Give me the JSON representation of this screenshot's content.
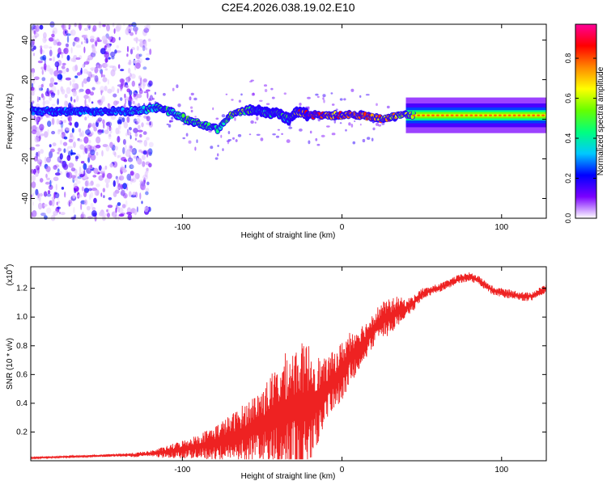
{
  "title": "C2E4.2026.038.19.02.E10",
  "chart_data": [
    {
      "type": "heatmap",
      "name": "spectrogram",
      "xlabel": "Height of straight line (km)",
      "ylabel": "Frequency (Hz)",
      "xlim": [
        -195,
        128
      ],
      "ylim": [
        -50,
        48
      ],
      "xticks": [
        -100,
        0,
        100
      ],
      "yticks": [
        -40,
        -20,
        0,
        20,
        40
      ],
      "xtick_labels": [
        "-100",
        "0",
        "100"
      ],
      "ytick_labels": [
        "-40",
        "-20",
        "0",
        "20",
        "40"
      ],
      "colorbar": {
        "label": "Normalized spectral amplitude",
        "range": [
          0,
          0.97
        ],
        "ticks": [
          0.0,
          0.2,
          0.4,
          0.6,
          0.8
        ],
        "tick_labels": [
          "0.0",
          "0.2",
          "0.4",
          "0.6",
          "0.8"
        ],
        "colormap": [
          "#ffffff",
          "#7a00ff",
          "#0000ff",
          "#00c8ff",
          "#00ff7f",
          "#66ff00",
          "#ffff00",
          "#ff8800",
          "#ff0000",
          "#ff0099"
        ]
      },
      "noise_region_x": [
        -195,
        -122
      ],
      "signal_track": {
        "x": [
          -190,
          -160,
          -130,
          -115,
          -105,
          -95,
          -85,
          -78,
          -70,
          -62,
          -55,
          -48,
          -40,
          -33,
          -28,
          -24,
          -20,
          -10,
          0,
          10,
          20,
          25,
          30,
          35,
          50,
          80,
          110,
          128
        ],
        "frequency": [
          4,
          4,
          4,
          6,
          3,
          -1,
          -3,
          -5,
          2,
          4,
          5,
          3,
          3,
          0,
          4,
          3,
          2,
          2,
          2,
          2,
          1,
          0,
          1,
          2,
          2,
          2,
          2,
          2
        ],
        "amplitude": [
          0.3,
          0.3,
          0.35,
          0.45,
          0.45,
          0.5,
          0.5,
          0.45,
          0.55,
          0.6,
          0.45,
          0.5,
          0.5,
          0.45,
          0.75,
          0.85,
          0.9,
          0.85,
          0.85,
          0.85,
          0.8,
          0.75,
          0.8,
          0.65,
          0.55,
          0.55,
          0.55,
          0.55
        ]
      }
    },
    {
      "type": "line",
      "name": "snr",
      "xlabel": "Height of straight line (km)",
      "ylabel": "SNR (10 * v/v)",
      "y_multiplier": "(x10",
      "y_multiplier_exp": "4",
      "y_multiplier_close": ")",
      "xlim": [
        -195,
        128
      ],
      "ylim": [
        0,
        1.35
      ],
      "xticks": [
        -100,
        0,
        100
      ],
      "yticks": [
        0.2,
        0.4,
        0.6,
        0.8,
        1.0,
        1.2
      ],
      "xtick_labels": [
        "-100",
        "0",
        "100"
      ],
      "ytick_labels": [
        "0.2",
        "0.4",
        "0.6",
        "0.8",
        "1.0",
        "1.2"
      ],
      "color": "#ee2222",
      "series": [
        {
          "name": "SNR",
          "x": [
            -195,
            -180,
            -165,
            -150,
            -140,
            -130,
            -120,
            -110,
            -100,
            -90,
            -80,
            -70,
            -60,
            -50,
            -45,
            -40,
            -35,
            -30,
            -25,
            -20,
            -15,
            -12,
            -10,
            -5,
            0,
            5,
            10,
            15,
            20,
            25,
            30,
            35,
            40,
            45,
            50,
            55,
            60,
            65,
            70,
            75,
            80,
            85,
            90,
            95,
            100,
            105,
            110,
            115,
            120,
            128
          ],
          "base": [
            0.02,
            0.025,
            0.03,
            0.035,
            0.04,
            0.04,
            0.05,
            0.06,
            0.08,
            0.1,
            0.12,
            0.16,
            0.2,
            0.25,
            0.28,
            0.3,
            0.34,
            0.36,
            0.38,
            0.4,
            0.42,
            0.45,
            0.5,
            0.56,
            0.62,
            0.72,
            0.78,
            0.84,
            0.92,
            0.98,
            1.0,
            1.04,
            1.06,
            1.1,
            1.16,
            1.18,
            1.2,
            1.22,
            1.25,
            1.27,
            1.28,
            1.26,
            1.22,
            1.18,
            1.17,
            1.16,
            1.15,
            1.14,
            1.15,
            1.2
          ],
          "amp": [
            0.005,
            0.005,
            0.006,
            0.008,
            0.01,
            0.015,
            0.02,
            0.04,
            0.06,
            0.08,
            0.12,
            0.15,
            0.2,
            0.25,
            0.3,
            0.35,
            0.4,
            0.42,
            0.42,
            0.4,
            0.3,
            0.25,
            0.2,
            0.2,
            0.2,
            0.18,
            0.15,
            0.12,
            0.12,
            0.12,
            0.12,
            0.1,
            0.06,
            0.05,
            0.04,
            0.03,
            0.03,
            0.03,
            0.03,
            0.03,
            0.03,
            0.03,
            0.03,
            0.03,
            0.03,
            0.03,
            0.03,
            0.03,
            0.03,
            0.03
          ]
        }
      ]
    }
  ]
}
